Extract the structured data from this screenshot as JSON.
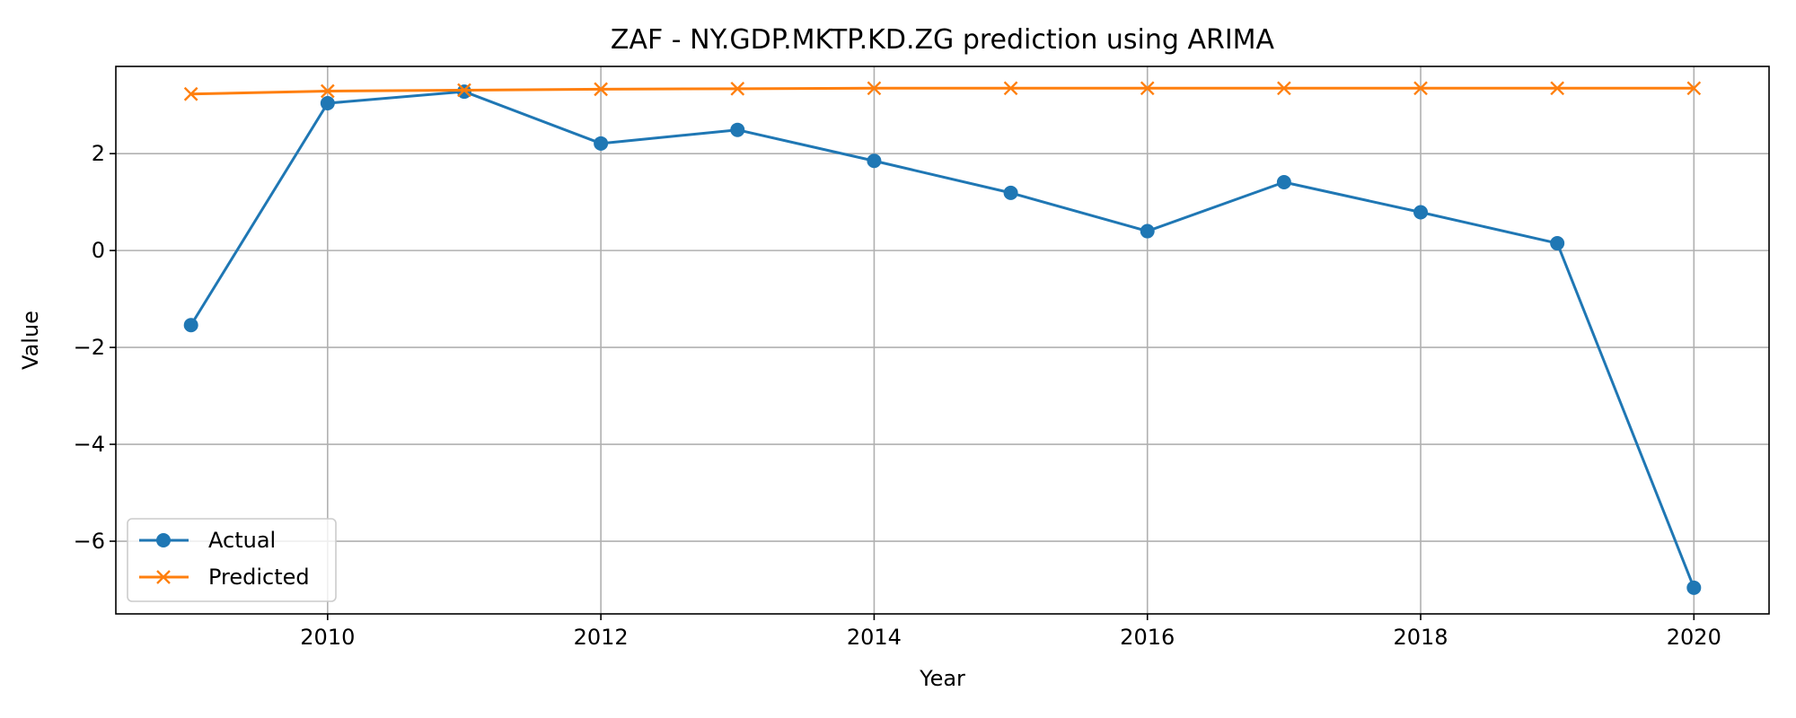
{
  "chart_data": {
    "type": "line",
    "title": "ZAF - NY.GDP.MKTP.KD.ZG prediction using ARIMA",
    "xlabel": "Year",
    "ylabel": "Value",
    "x": [
      2009,
      2010,
      2011,
      2012,
      2013,
      2014,
      2015,
      2016,
      2017,
      2018,
      2019,
      2020
    ],
    "xlim": [
      2008.45,
      2020.55
    ],
    "ylim": [
      -7.5,
      3.8
    ],
    "xticks": [
      2010,
      2012,
      2014,
      2016,
      2018,
      2020
    ],
    "yticks": [
      -6,
      -4,
      -2,
      0,
      2
    ],
    "grid": true,
    "legend_position": "lower-left",
    "series": [
      {
        "name": "Actual",
        "color": "#1f77b4",
        "marker": "circle",
        "values": [
          -1.54,
          3.04,
          3.28,
          2.21,
          2.49,
          1.85,
          1.19,
          0.4,
          1.41,
          0.79,
          0.15,
          -6.96
        ]
      },
      {
        "name": "Predicted",
        "color": "#ff7f0e",
        "marker": "x",
        "values": [
          3.23,
          3.29,
          3.31,
          3.33,
          3.34,
          3.35,
          3.35,
          3.35,
          3.35,
          3.35,
          3.35,
          3.35
        ]
      }
    ]
  }
}
